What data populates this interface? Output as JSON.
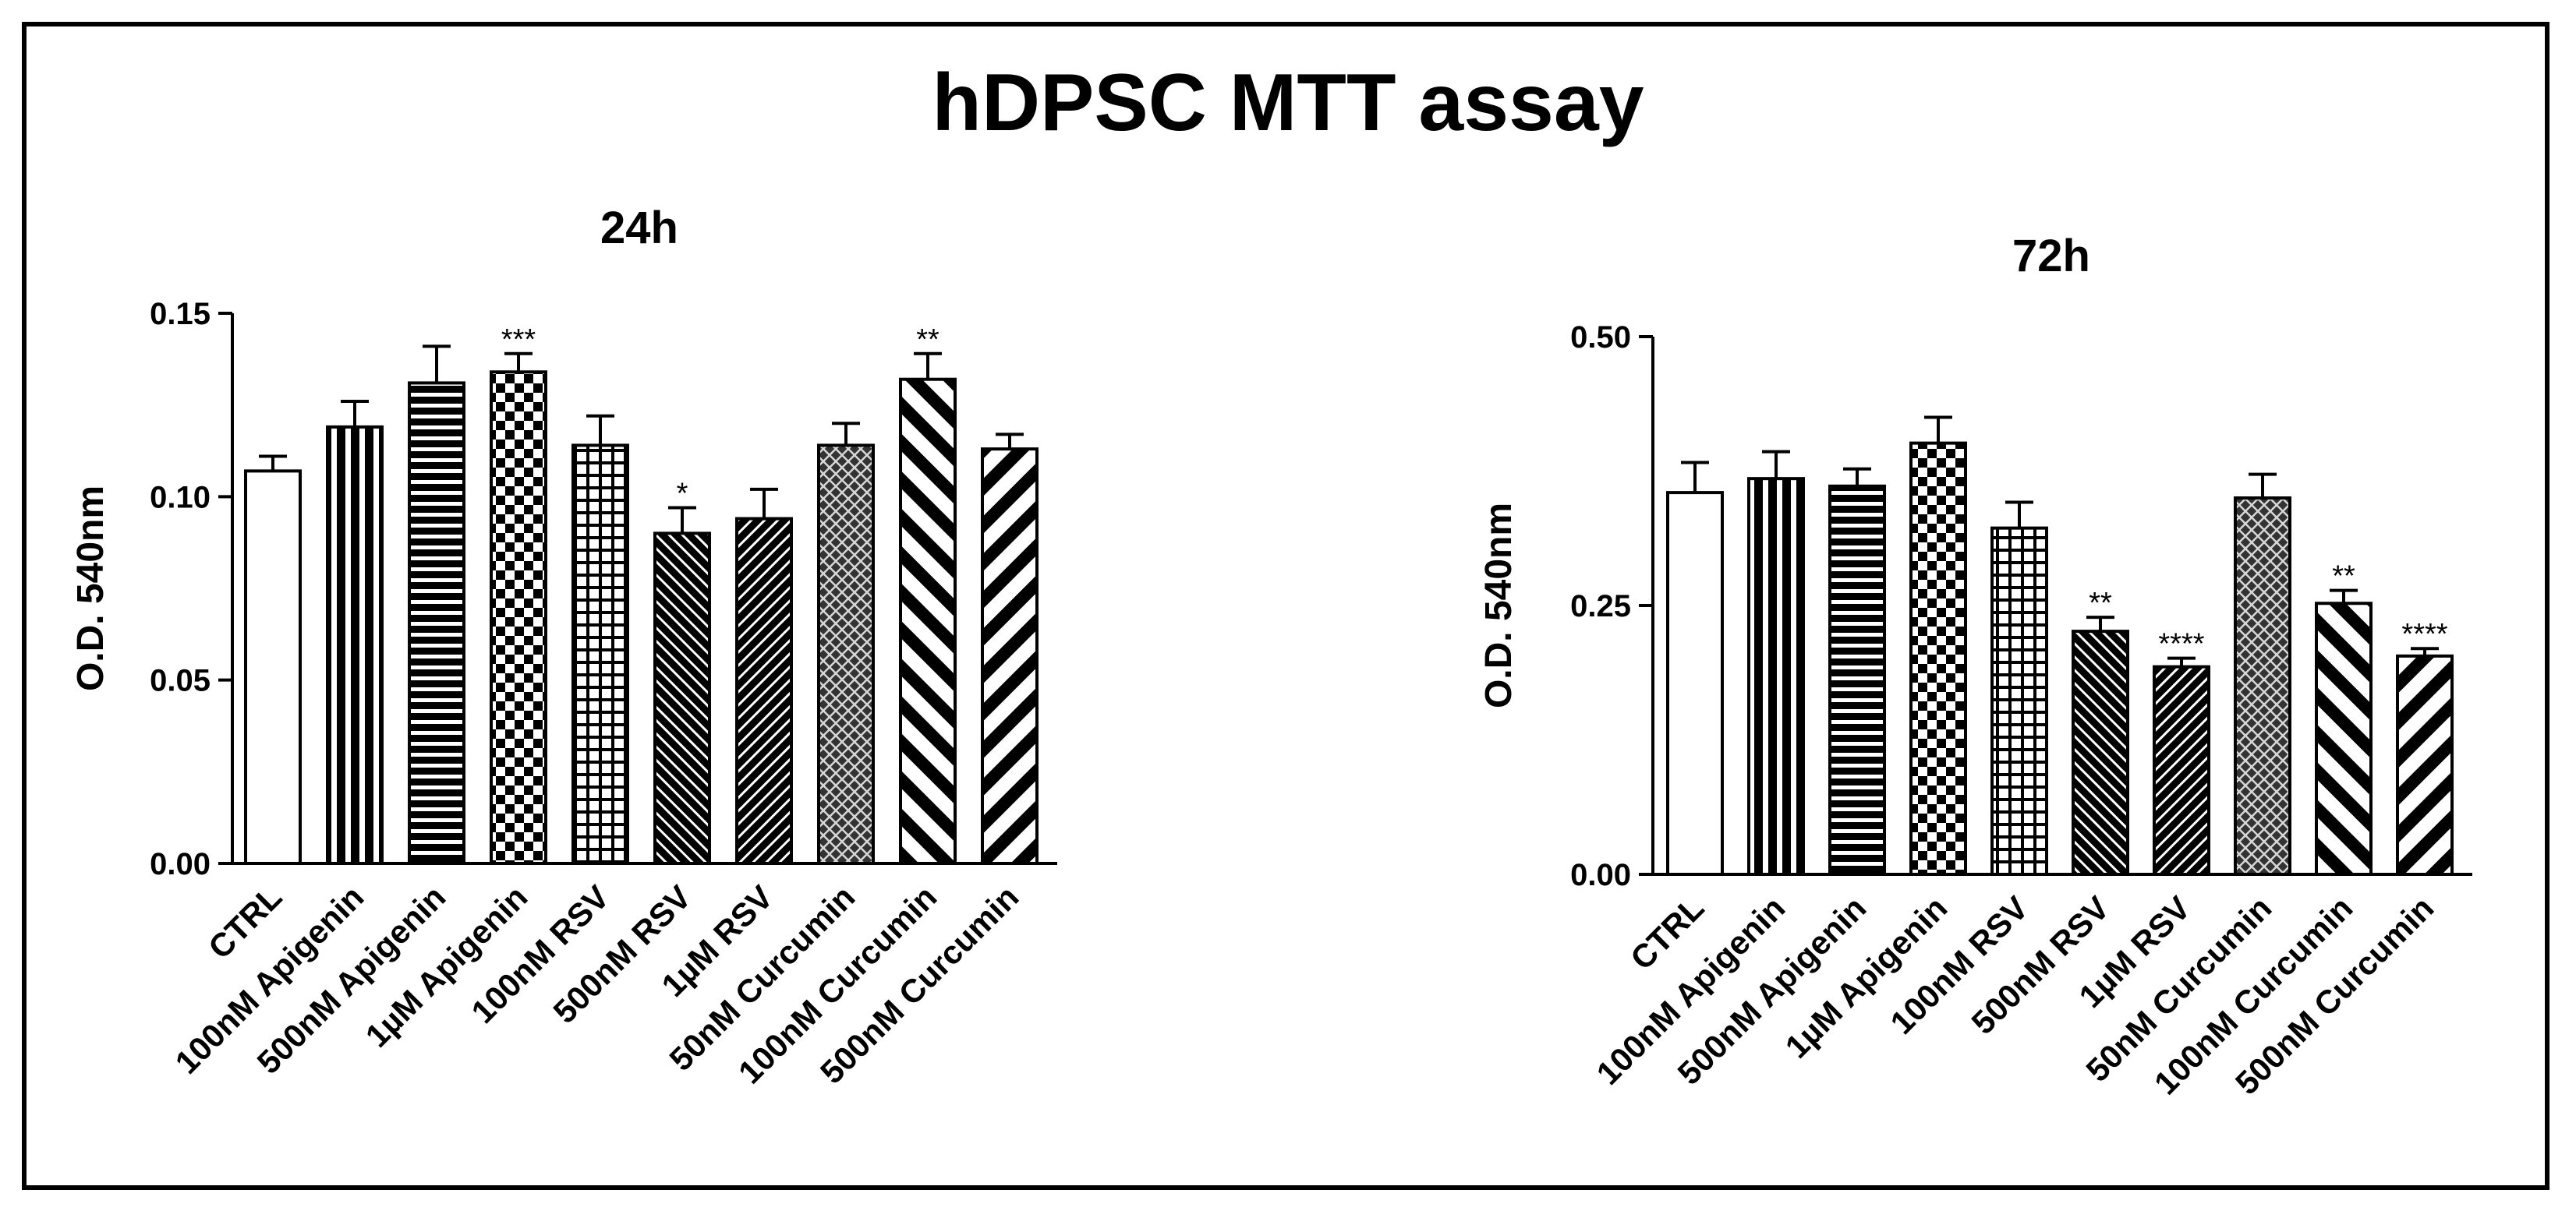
{
  "figure": {
    "title": "hDPSC MTT assay"
  },
  "colors": {
    "bar_stroke": "#000000",
    "background": "#ffffff"
  },
  "chart_data": [
    {
      "type": "bar",
      "title": "24h",
      "xlabel": "",
      "ylabel": "O.D. 540nm",
      "ylim": [
        0,
        0.15
      ],
      "yticks": [
        "0.00",
        "0.05",
        "0.10",
        "0.15"
      ],
      "categories": [
        "CTRL",
        "100nM Apigenin",
        "500nM Apigenin",
        "1µM Apigenin",
        "100nM RSV",
        "500nM RSV",
        "1µM RSV",
        "50nM Curcumin",
        "100nM Curcumin",
        "500nM Curcumin"
      ],
      "values": [
        0.107,
        0.119,
        0.131,
        0.134,
        0.114,
        0.09,
        0.094,
        0.114,
        0.132,
        0.113
      ],
      "errors": [
        0.004,
        0.007,
        0.01,
        0.005,
        0.008,
        0.007,
        0.008,
        0.006,
        0.007,
        0.004
      ],
      "significance": [
        "",
        "",
        "",
        "***",
        "",
        "*",
        "",
        "",
        "**",
        ""
      ],
      "patterns": [
        "white",
        "vertical",
        "horizontal",
        "checker",
        "grid",
        "diag-fine-back",
        "diag-fine-fwd",
        "diamond",
        "diag-wide-back",
        "diag-wide-fwd"
      ]
    },
    {
      "type": "bar",
      "title": "72h",
      "xlabel": "",
      "ylabel": "O.D. 540nm",
      "ylim": [
        0,
        0.5
      ],
      "yticks": [
        "0.00",
        "0.25",
        "0.50"
      ],
      "categories": [
        "CTRL",
        "100nM Apigenin",
        "500nM Apigenin",
        "1µM Apigenin",
        "100nM RSV",
        "500nM RSV",
        "1µM RSV",
        "50nM Curcumin",
        "100nM Curcumin",
        "500nM Curcumin"
      ],
      "values": [
        0.355,
        0.368,
        0.361,
        0.401,
        0.322,
        0.226,
        0.193,
        0.35,
        0.252,
        0.203
      ],
      "errors": [
        0.028,
        0.025,
        0.016,
        0.024,
        0.024,
        0.013,
        0.008,
        0.022,
        0.012,
        0.007
      ],
      "significance": [
        "",
        "",
        "",
        "",
        "",
        "**",
        "****",
        "",
        "**",
        "****"
      ],
      "patterns": [
        "white",
        "vertical",
        "horizontal",
        "checker",
        "grid",
        "diag-fine-back",
        "diag-fine-fwd",
        "diamond",
        "diag-wide-back",
        "diag-wide-fwd"
      ]
    }
  ]
}
